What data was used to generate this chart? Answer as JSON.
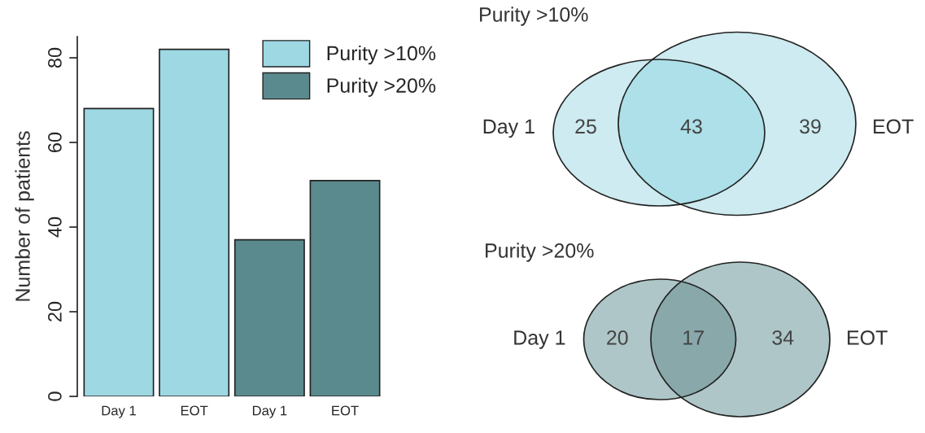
{
  "chart_data": [
    {
      "type": "bar",
      "ylabel": "Number of patients",
      "categories": [
        "Day 1",
        "EOT",
        "Day 1",
        "EOT"
      ],
      "series": [
        {
          "name": "Purity >10%",
          "color": "#9dd8e3",
          "values": [
            68,
            82,
            null,
            null
          ]
        },
        {
          "name": "Purity >20%",
          "color": "#5b8a8e",
          "values": [
            null,
            null,
            37,
            51
          ]
        }
      ],
      "ylim": [
        0,
        85
      ],
      "yticks": [
        0,
        20,
        40,
        60,
        80
      ],
      "legend": "top right",
      "grid": false
    },
    {
      "type": "other",
      "title": "Purity >10%",
      "categories": [
        "Day 1",
        null,
        "EOT"
      ],
      "values": [
        25,
        43,
        39
      ],
      "data_labels": true,
      "colors": [
        "#cdebf0",
        "#ade0e8",
        "#cdebf0"
      ]
    },
    {
      "type": "other",
      "title": "Purity >20%",
      "categories": [
        "Day 1",
        null,
        "EOT"
      ],
      "values": [
        20,
        17,
        34
      ],
      "data_labels": true,
      "colors": [
        "#aec6c7",
        "#88a8aa",
        "#aec6c7"
      ]
    }
  ]
}
